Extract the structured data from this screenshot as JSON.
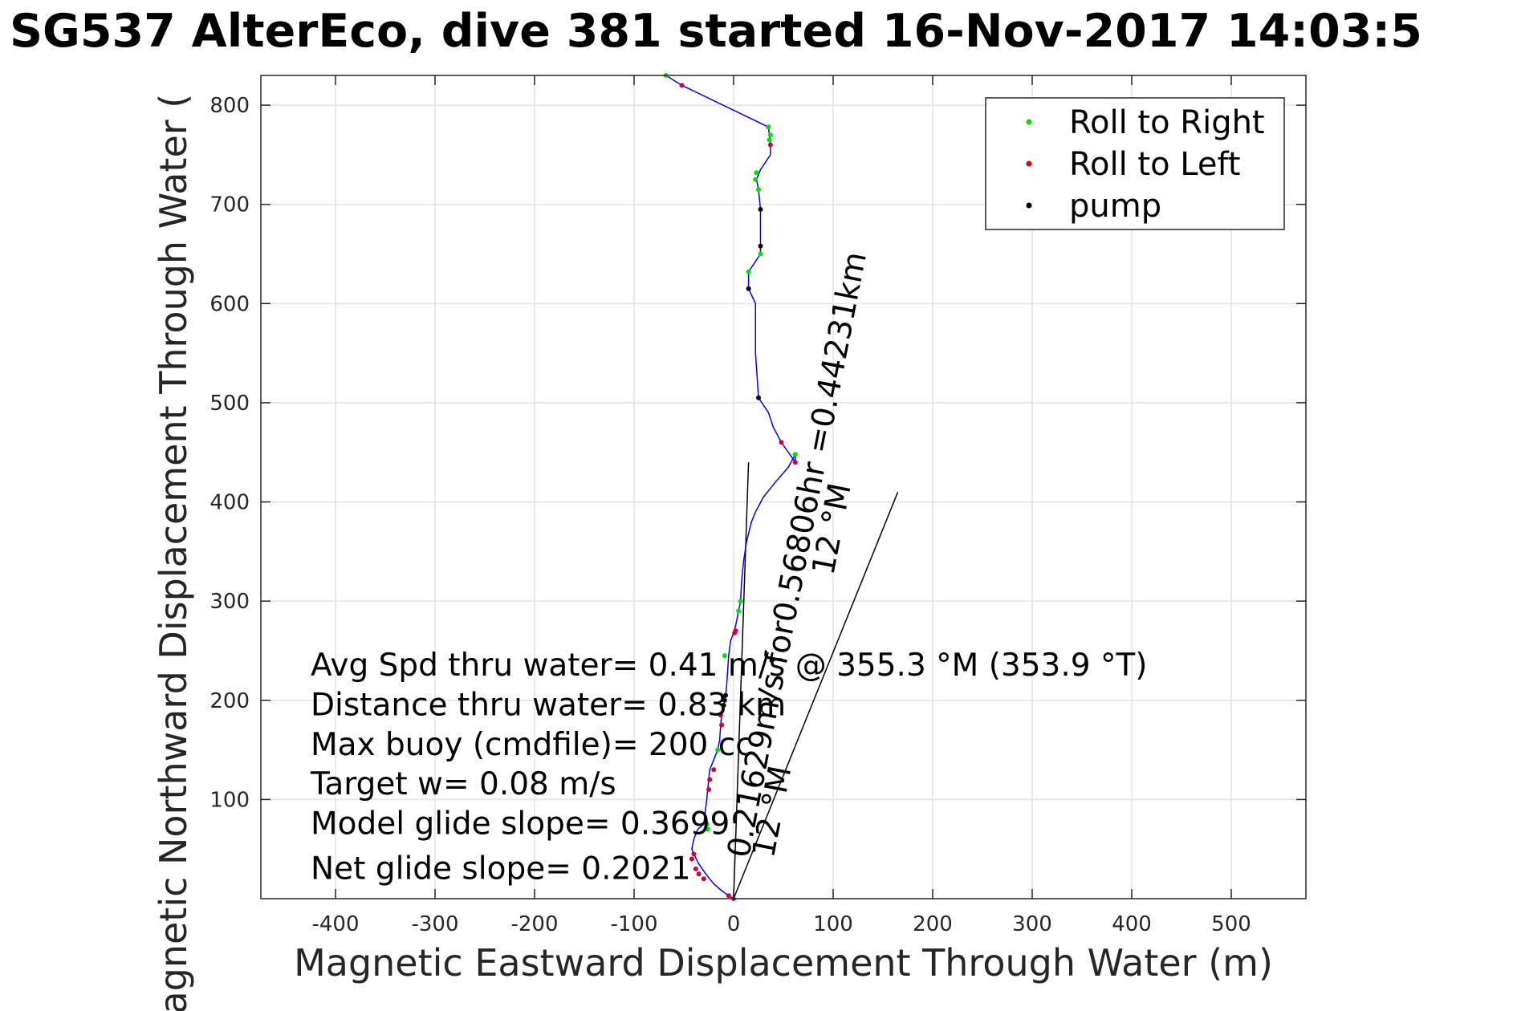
{
  "chart_data": {
    "type": "line",
    "title": "SG537 AlterEco, dive 381 started 16-Nov-2017 14:03:5",
    "xlabel": "Magnetic Eastward Displacement Through Water (m)",
    "ylabel": "Magnetic Northward Displacement Through Water (",
    "xlim": [
      -475,
      575
    ],
    "ylim": [
      0,
      830
    ],
    "xticks": [
      "-400",
      "-300",
      "-200",
      "-100",
      "0",
      "100",
      "200",
      "300",
      "400",
      "500"
    ],
    "yticks": [
      "100",
      "200",
      "300",
      "400",
      "500",
      "600",
      "700",
      "800"
    ],
    "grid": true,
    "legend_position": "top-right",
    "legend": [
      {
        "name": "Roll to Right",
        "color": "#00dd00"
      },
      {
        "name": "Roll to Left",
        "color": "#dd0000"
      },
      {
        "name": "pump",
        "color": "#000000"
      }
    ],
    "track_color": "#0000ff",
    "roll_right_color": "#00dd00",
    "roll_left_color": "#cc0033",
    "pump_color": "#000000",
    "series": [
      {
        "type": "line",
        "x": [
          0,
          -5,
          -12,
          -20,
          -28,
          -35,
          -40,
          -42,
          -40,
          -36,
          -30,
          -27,
          -26,
          -25,
          -24,
          -22,
          -20,
          -16,
          -14,
          -13,
          -12,
          -11,
          -10,
          -9,
          -8,
          -7,
          -6,
          -5,
          -3,
          0,
          2,
          5,
          7,
          8,
          10,
          13,
          18,
          22,
          30,
          42,
          55,
          62,
          62,
          48,
          40,
          35,
          25,
          22,
          22,
          15,
          15,
          27,
          27,
          27,
          25,
          23,
          27,
          37,
          37,
          35,
          -52,
          -68
        ],
        "y": [
          0,
          3,
          8,
          15,
          25,
          35,
          45,
          50,
          60,
          70,
          75,
          100,
          110,
          120,
          130,
          135,
          140,
          150,
          160,
          175,
          185,
          190,
          195,
          200,
          205,
          215,
          230,
          245,
          260,
          268,
          275,
          290,
          300,
          320,
          340,
          360,
          380,
          390,
          405,
          420,
          435,
          448,
          440,
          460,
          475,
          490,
          505,
          550,
          600,
          615,
          632,
          650,
          658,
          695,
          715,
          725,
          735,
          750,
          760,
          778,
          820,
          830
        ]
      },
      {
        "type": "scatter",
        "name": "Roll to Right",
        "x": [
          -68,
          35,
          37,
          36,
          23,
          25,
          27,
          15,
          -27,
          -26,
          -16,
          -9,
          5,
          7,
          62,
          22
        ],
        "y": [
          830,
          778,
          770,
          765,
          732,
          715,
          650,
          632,
          75,
          70,
          150,
          245,
          290,
          300,
          448,
          725
        ]
      },
      {
        "type": "scatter",
        "name": "Roll to Left",
        "x": [
          -52,
          37,
          -20,
          -24,
          -25,
          -40,
          -42,
          -38,
          -35,
          -30,
          -12,
          -13,
          1,
          2,
          62,
          48,
          0,
          -5
        ],
        "y": [
          820,
          760,
          130,
          120,
          110,
          45,
          40,
          30,
          25,
          20,
          175,
          185,
          268,
          270,
          440,
          460,
          0,
          3
        ]
      },
      {
        "type": "scatter",
        "name": "pump",
        "x": [
          27,
          27,
          25,
          15,
          -10,
          -9,
          -8
        ],
        "y": [
          695,
          658,
          505,
          615,
          195,
          200,
          205
        ]
      }
    ],
    "reference_lines": [
      {
        "x": [
          0,
          15
        ],
        "y": [
          0,
          440
        ]
      },
      {
        "x": [
          0,
          165
        ],
        "y": [
          0,
          410
        ]
      }
    ],
    "annotations": [
      {
        "text": "Avg Spd thru water=  0.41 m/s @ 355.3 °M (353.9 °T)",
        "x": -425,
        "y": 225
      },
      {
        "text": "Distance thru water=  0.83 km",
        "x": -425,
        "y": 185
      },
      {
        "text": "Max buoy (cmdfile)= 200 cc",
        "x": -425,
        "y": 145
      },
      {
        "text": "Target w= 0.08 m/s",
        "x": -425,
        "y": 105
      },
      {
        "text": "Model glide slope= 0.3699",
        "x": -425,
        "y": 65
      },
      {
        "text": "Net glide slope= 0.2021",
        "x": -425,
        "y": 20
      },
      {
        "text": "0.21629m/s for0.56806hr =0.44231km",
        "x": 15,
        "y": 40,
        "angle": 79
      },
      {
        "text": "12 °M",
        "x": 40,
        "y": 40,
        "angle": 79
      },
      {
        "text": "12 °M",
        "x": 100,
        "y": 325,
        "angle": 79
      }
    ]
  }
}
